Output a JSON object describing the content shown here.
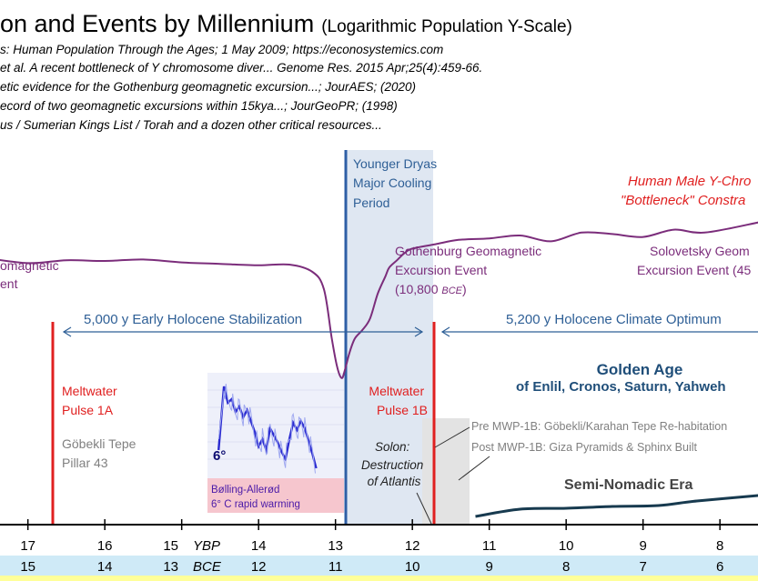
{
  "chart_data": {
    "type": "line",
    "title": "on and Events by Millennium",
    "subtitle": "(Logarithmic Population Y-Scale)",
    "sources": [
      "s: Human Population Through the Ages; 1 May 2009; https://econosystemics.com",
      "et al. A recent bottleneck of Y chromosome diver... Genome Res. 2015 Apr;25(4):459-66.",
      "etic evidence for the Gothenburg geomagnetic excursion...; JourAES; (2020)",
      "ecord of two geomagnetic excursions within 15kya...; JourGeoPR; (1998)",
      "us / Sumerian Kings List / Torah and a dozen other critical resources..."
    ],
    "xlabel_ybp": "YBP",
    "xlabel_bce": "BCE",
    "ybp_ticks": [
      "17",
      "16",
      "15",
      "14",
      "13",
      "12",
      "11",
      "10",
      "9",
      "8"
    ],
    "bce_ticks": [
      "15",
      "14",
      "13",
      "12",
      "11",
      "10",
      "9",
      "8",
      "7",
      "6"
    ],
    "xlim_kya": [
      17.15,
      7.5
    ],
    "series": [
      {
        "name": "Human Male Y-Chromosome \"Bottleneck\" Constraint",
        "x": [
          17.6,
          17.0,
          16.5,
          16.0,
          15.5,
          15.0,
          14.5,
          14.0,
          13.6,
          13.3,
          13.15,
          13.05,
          12.98,
          12.92,
          12.88,
          12.82,
          12.75,
          12.65,
          12.55,
          12.45,
          12.35,
          12.3,
          12.2,
          12.1,
          12.0,
          11.7,
          11.4,
          11.0,
          10.6,
          10.2,
          9.8,
          9.4,
          9.0,
          8.6,
          8.2,
          7.5
        ],
        "values": [
          0.0,
          0.4,
          0.2,
          0.25,
          0.15,
          0.35,
          0.45,
          0.55,
          0.5,
          1.0,
          2.2,
          5.5,
          7.5,
          8.3,
          7.8,
          6.6,
          5.6,
          5.0,
          4.2,
          2.5,
          1.3,
          0.7,
          0.2,
          -0.3,
          -0.6,
          -0.9,
          -1.2,
          -1.3,
          -1.5,
          -1.1,
          -1.7,
          -1.6,
          -1.4,
          -1.9,
          -1.7,
          -2.4
        ]
      },
      {
        "name": "Semi-Nomadic Era",
        "x": [
          11.18,
          10.6,
          10.0,
          9.4,
          8.8,
          8.3,
          7.5
        ],
        "values": [
          0.0,
          0.8,
          0.9,
          1.1,
          1.2,
          1.7,
          2.3
        ]
      },
      {
        "name": "Bølling-Allerød",
        "x": [
          14.52,
          14.45,
          14.4,
          14.35,
          14.3,
          14.25,
          14.2,
          14.15,
          14.1,
          14.05,
          14.0,
          13.95,
          13.9,
          13.85,
          13.8,
          13.75,
          13.7,
          13.65,
          13.6,
          13.55,
          13.5,
          13.45,
          13.4,
          13.35,
          13.3,
          13.25
        ],
        "values": [
          1.0,
          4.5,
          3.6,
          3.8,
          3.1,
          3.4,
          2.8,
          3.2,
          2.6,
          2.0,
          1.2,
          1.6,
          1.0,
          2.2,
          1.8,
          1.4,
          0.9,
          0.5,
          1.6,
          2.5,
          2.1,
          2.6,
          2.2,
          1.5,
          0.8,
          0.0
        ]
      }
    ],
    "annotations": {
      "younger_dryas": "Younger Dryas Major Cooling Period",
      "gothenburg": "Gothenburg Geomagnetic Excursion Event",
      "gothenburg_date": "(10,800 BCE)",
      "solovetsky": "Solovetsky Geomagnetic Excursion Event (45",
      "left_geomagnetic": "omagnetic ent",
      "early_holocene": "5,000 y Early Holocene Stabilization",
      "holocene_optimum": "5,200 y Holocene Climate Optimum",
      "mwp1a": "Meltwater Pulse 1A",
      "mwp1b": "Meltwater Pulse 1B",
      "gobekli": "Göbekli Tepe Pillar 43",
      "bolling_label": "Bølling-Allerød",
      "bolling_sub": "6° C rapid warming",
      "six_degrees": "6°",
      "solon": "Solon: Destruction of Atlantis",
      "pre_mwp": "Pre MWP-1B: Göbekli/Karahan Tepe Re-habitation",
      "post_mwp": "Post MWP-1B: Giza Pyramids & Sphinx Built",
      "golden_age": "Golden Age",
      "golden_sub": "of Enlil, Cronos, Saturn, Yahweh",
      "semi_nomadic": "Semi-Nomadic Era",
      "bottleneck_1": "Human Male Y-Chro",
      "bottleneck_2": "\"Bottleneck\" Constra"
    },
    "colors": {
      "purple": "#7b2d7b",
      "red": "#e02020",
      "blue": "#2e5f96",
      "navy": "#1f4e79",
      "dryas_band": "#dfe7f2",
      "dryas_line": "#2e5fa6",
      "gray": "#808080",
      "gray_band": "#e3e3e3",
      "bce_row": "#cfeaf7",
      "pink_box": "#f6c6ce",
      "dark_curve": "#173a4f"
    }
  }
}
